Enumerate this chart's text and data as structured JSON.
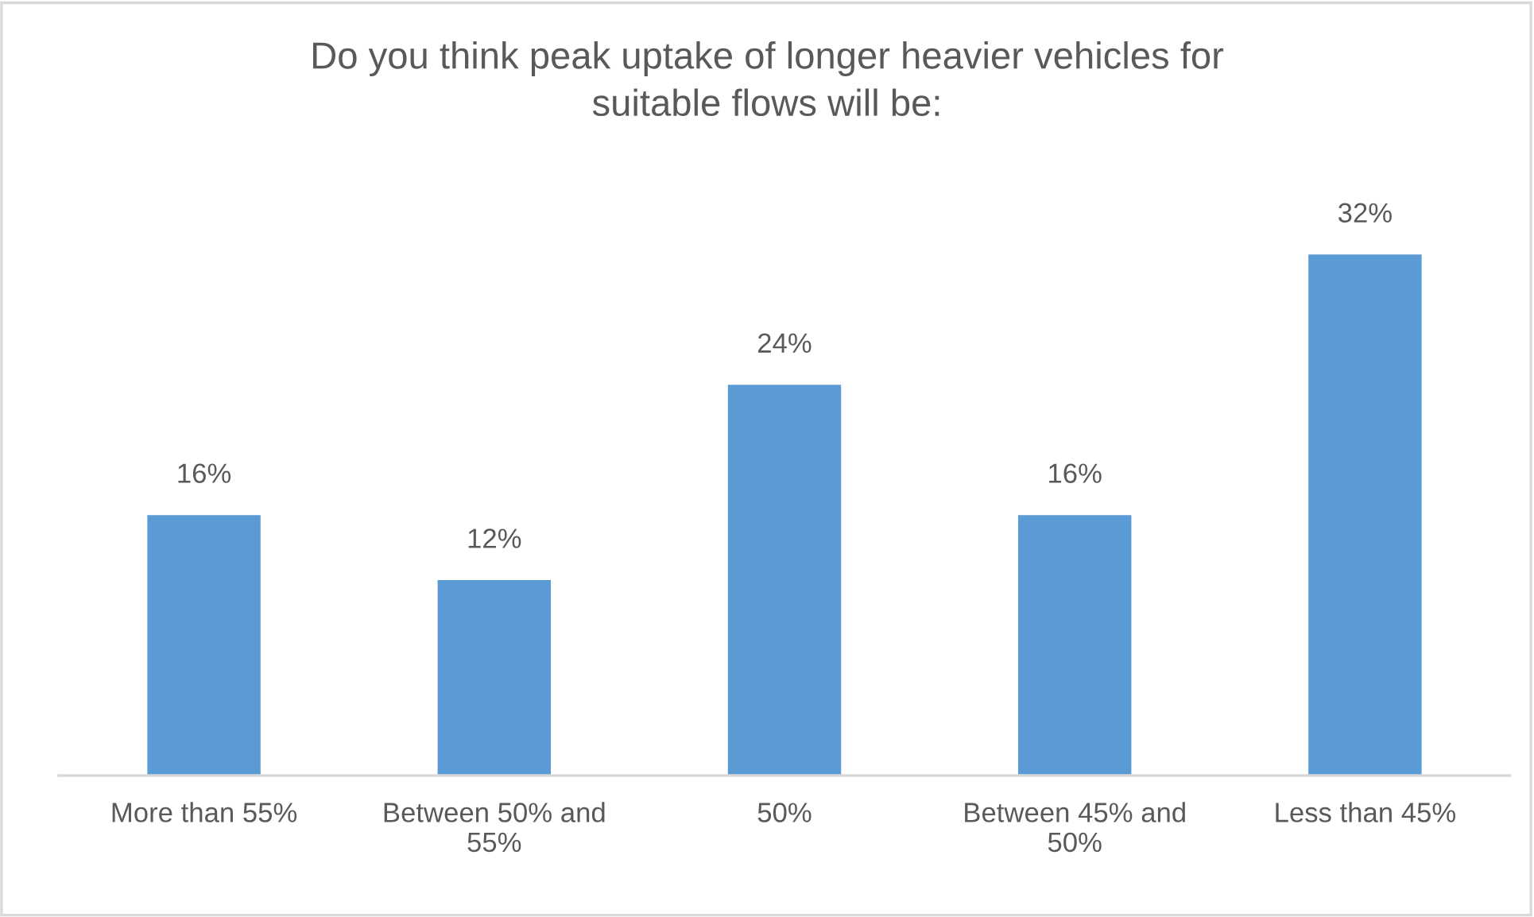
{
  "chart_data": {
    "type": "bar",
    "title": "Do you think peak uptake of longer heavier vehicles for suitable flows will be:",
    "categories": [
      "More than 55%",
      "Between 50% and 55%",
      "50%",
      "Between 45% and 50%",
      "Less than 45%"
    ],
    "values": [
      16,
      12,
      24,
      16,
      32
    ],
    "value_labels": [
      "16%",
      "12%",
      "24%",
      "16%",
      "32%"
    ],
    "color": "#5b9bd5",
    "tick_labels": "x",
    "grid": false,
    "legend": false
  }
}
